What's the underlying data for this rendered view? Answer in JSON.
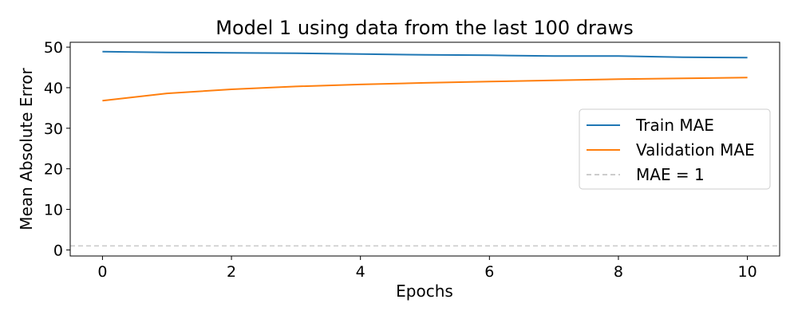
{
  "chart_data": {
    "type": "line",
    "title": "Model 1 using data from the last 100 draws",
    "xlabel": "Epochs",
    "ylabel": "Mean Absolute Error",
    "xlim": [
      -0.5,
      10.5
    ],
    "ylim": [
      -1.5,
      51.2
    ],
    "xticks": [
      0,
      2,
      4,
      6,
      8,
      10
    ],
    "yticks": [
      0,
      10,
      20,
      30,
      40,
      50
    ],
    "grid": false,
    "legend_position": "center-right",
    "series": [
      {
        "name": "Train MAE",
        "color": "#1f77b4",
        "style": "solid",
        "x": [
          0,
          1,
          2,
          3,
          4,
          5,
          6,
          7,
          8,
          9,
          10
        ],
        "y": [
          48.9,
          48.7,
          48.6,
          48.5,
          48.3,
          48.1,
          48.0,
          47.8,
          47.8,
          47.5,
          47.4
        ]
      },
      {
        "name": "Validation MAE",
        "color": "#ff7f0e",
        "style": "solid",
        "x": [
          0,
          1,
          2,
          3,
          4,
          5,
          6,
          7,
          8,
          9,
          10
        ],
        "y": [
          36.8,
          38.6,
          39.6,
          40.3,
          40.8,
          41.2,
          41.5,
          41.8,
          42.1,
          42.3,
          42.5
        ]
      },
      {
        "name": "MAE = 1",
        "color": "#cccccc",
        "style": "dashed",
        "y_constant": 1
      }
    ]
  }
}
